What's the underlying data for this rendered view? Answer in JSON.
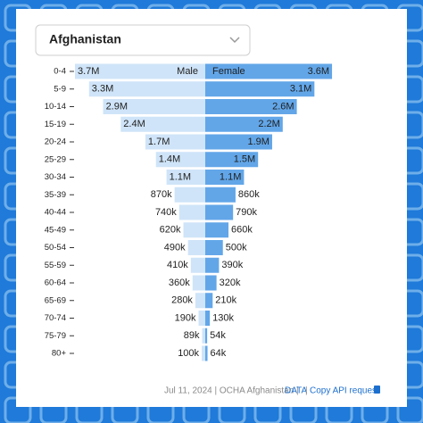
{
  "selector": "Afghanistan",
  "chart_data": {
    "type": "pyramid",
    "categories": [
      "0-4",
      "5-9",
      "10-14",
      "15-19",
      "20-24",
      "25-29",
      "30-34",
      "35-39",
      "40-44",
      "45-49",
      "50-54",
      "55-59",
      "60-64",
      "65-69",
      "70-74",
      "75-79",
      "80+"
    ],
    "series": [
      {
        "name": "Male",
        "color": "#cfe4f8",
        "values": [
          3700000,
          3300000,
          2900000,
          2400000,
          1700000,
          1400000,
          1100000,
          870000,
          740000,
          620000,
          490000,
          410000,
          360000,
          280000,
          190000,
          89000,
          100000
        ],
        "value_labels": [
          "3.7M",
          "3.3M",
          "2.9M",
          "2.4M",
          "1.7M",
          "1.4M",
          "1.1M",
          "870k",
          "740k",
          "620k",
          "490k",
          "410k",
          "360k",
          "280k",
          "190k",
          "89k",
          "100k"
        ]
      },
      {
        "name": "Female",
        "color": "#62a6e8",
        "values": [
          3600000,
          3100000,
          2600000,
          2200000,
          1900000,
          1500000,
          1100000,
          860000,
          790000,
          660000,
          500000,
          390000,
          320000,
          210000,
          130000,
          54000,
          64000
        ],
        "value_labels": [
          "3.6M",
          "3.1M",
          "2.6M",
          "2.2M",
          "1.9M",
          "1.5M",
          "1.1M",
          "860k",
          "790k",
          "660k",
          "500k",
          "390k",
          "320k",
          "210k",
          "130k",
          "54k",
          "64k"
        ]
      }
    ]
  },
  "footer": {
    "credit": "Jul 11, 2024 | OCHA Afghanistan |",
    "data_link": "DATA",
    "separator": "|",
    "api_link": "Copy API request"
  }
}
